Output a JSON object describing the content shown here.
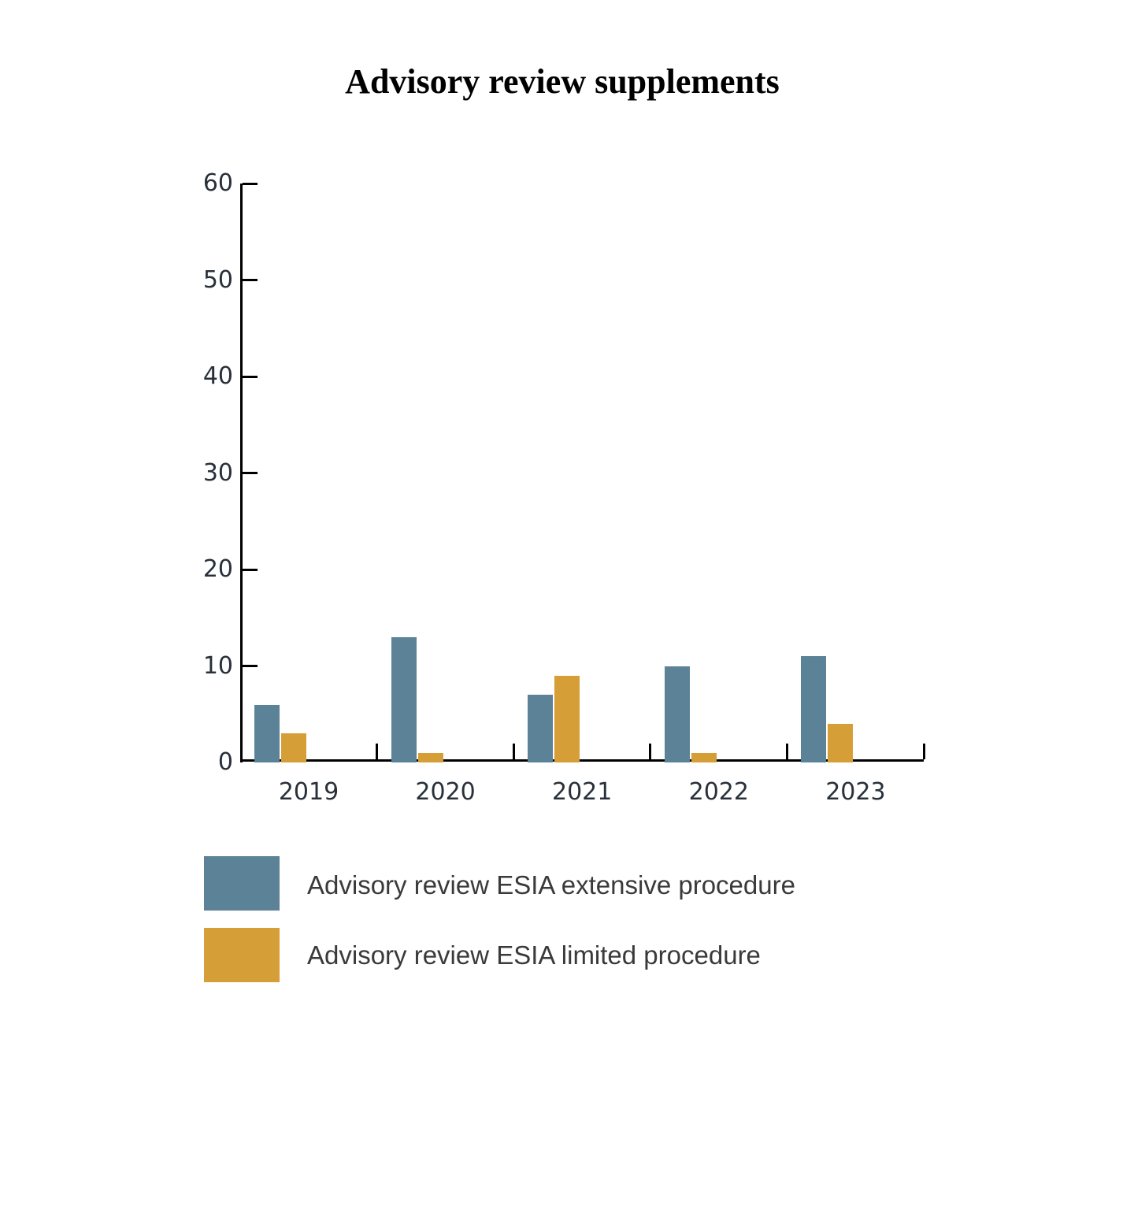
{
  "chart_data": {
    "type": "bar",
    "title": "Advisory review supplements",
    "categories": [
      "2019",
      "2020",
      "2021",
      "2022",
      "2023"
    ],
    "series": [
      {
        "name": "Advisory review ESIA extensive procedure",
        "color": "#5c8298",
        "values": [
          6,
          13,
          7,
          10,
          11
        ]
      },
      {
        "name": "Advisory review ESIA limited procedure",
        "color": "#d59e37",
        "values": [
          3,
          1,
          9,
          1,
          4
        ]
      }
    ],
    "xlabel": "",
    "ylabel": "",
    "ylim": [
      0,
      60
    ],
    "yticks": [
      0,
      10,
      20,
      30,
      40,
      50,
      60
    ],
    "grid": false,
    "legend_position": "bottom-left",
    "axis_color": "#000000",
    "tick_label_color": "#28303a",
    "legend_text_color": "#3a3a3a"
  }
}
